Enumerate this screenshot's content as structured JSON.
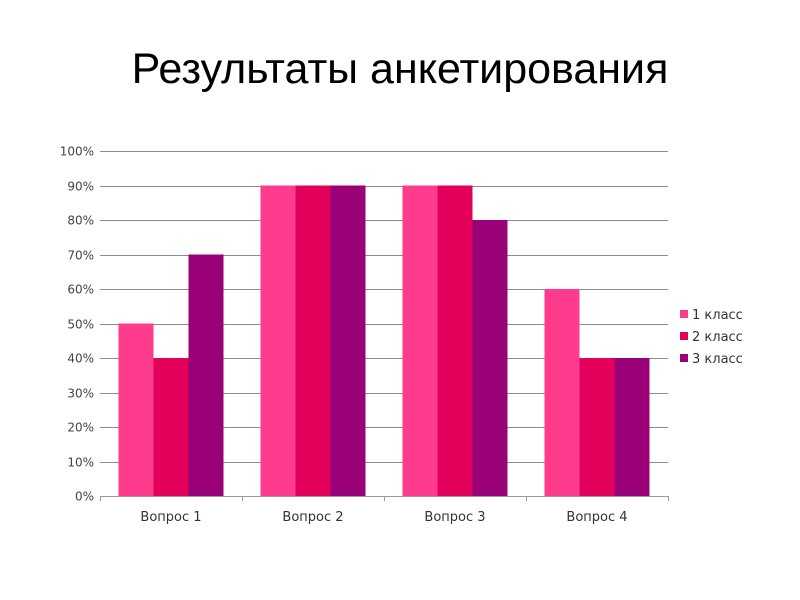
{
  "slide": {
    "title": "Результаты анкетирования"
  },
  "chart_data": {
    "type": "bar",
    "title": "",
    "xlabel": "",
    "ylabel": "",
    "categories": [
      "Вопрос 1",
      "Вопрос 2",
      "Вопрос 3",
      "Вопрос 4"
    ],
    "series": [
      {
        "name": "1 класс",
        "values": [
          50,
          90,
          90,
          60
        ],
        "color": "#ff3b8d"
      },
      {
        "name": "2 класс",
        "values": [
          40,
          90,
          90,
          40
        ],
        "color": "#e3005a"
      },
      {
        "name": "3 класс",
        "values": [
          70,
          90,
          80,
          40
        ],
        "color": "#9a0078"
      }
    ],
    "ylim": [
      0,
      100
    ],
    "yticks": [
      0,
      10,
      20,
      30,
      40,
      50,
      60,
      70,
      80,
      90,
      100
    ],
    "ytick_labels": [
      "0%",
      "10%",
      "20%",
      "30%",
      "40%",
      "50%",
      "60%",
      "70%",
      "80%",
      "90%",
      "100%"
    ],
    "grid": true,
    "legend_position": "right"
  }
}
